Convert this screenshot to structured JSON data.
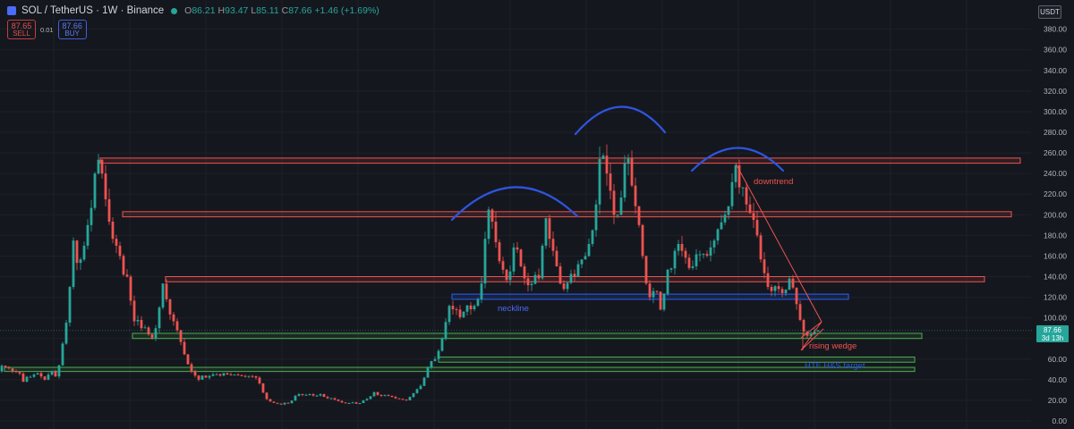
{
  "header": {
    "title": "SOL / TetherUS · 1W · Binance",
    "ohlc": {
      "o": "86.21",
      "h": "93.47",
      "l": "85.11",
      "c": "87.66",
      "change": "+1.46 (+1.69%)"
    },
    "sell_price": "87.65",
    "sell_label": "SELL",
    "spread": "0.01",
    "buy_price": "87.66",
    "buy_label": "BUY"
  },
  "currency": "USDT",
  "colors": {
    "up": "#26a69a",
    "down": "#ef5350",
    "background": "#15171e",
    "resistance": "#ef5350",
    "support": "#4caf50",
    "neckline": "#2962ff",
    "arc": "#2e55e0"
  },
  "chart_data": {
    "type": "candlestick",
    "symbol": "SOL/USDT",
    "interval": "1W",
    "ylim": [
      0,
      380
    ],
    "y_ticks": [
      "380.00",
      "360.00",
      "340.00",
      "320.00",
      "300.00",
      "280.00",
      "260.00",
      "240.00",
      "220.00",
      "200.00",
      "180.00",
      "160.00",
      "140.00",
      "120.00",
      "100.00",
      "80.00",
      "60.00",
      "40.00",
      "20.00",
      "0.00"
    ],
    "last_price": "87.66",
    "countdown": "3d 13h",
    "price_path": [
      [
        0,
        48
      ],
      [
        5,
        55
      ],
      [
        10,
        50
      ],
      [
        14,
        52
      ],
      [
        18,
        45
      ],
      [
        22,
        50
      ],
      [
        28,
        38
      ],
      [
        33,
        44
      ],
      [
        38,
        42
      ],
      [
        42,
        48
      ],
      [
        47,
        44
      ],
      [
        52,
        40
      ],
      [
        56,
        45
      ],
      [
        60,
        48
      ],
      [
        65,
        42
      ],
      [
        69,
        58
      ],
      [
        72,
        75
      ],
      [
        75,
        88
      ],
      [
        78,
        110
      ],
      [
        81,
        140
      ],
      [
        84,
        175
      ],
      [
        87,
        155
      ],
      [
        90,
        150
      ],
      [
        93,
        160
      ],
      [
        96,
        170
      ],
      [
        99,
        185
      ],
      [
        102,
        200
      ],
      [
        105,
        210
      ],
      [
        108,
        240
      ],
      [
        111,
        255
      ],
      [
        114,
        250
      ],
      [
        117,
        235
      ],
      [
        120,
        215
      ],
      [
        123,
        200
      ],
      [
        126,
        180
      ],
      [
        129,
        175
      ],
      [
        132,
        170
      ],
      [
        135,
        165
      ],
      [
        138,
        150
      ],
      [
        141,
        138
      ],
      [
        144,
        140
      ],
      [
        147,
        125
      ],
      [
        150,
        100
      ],
      [
        153,
        95
      ],
      [
        156,
        98
      ],
      [
        160,
        90
      ],
      [
        163,
        92
      ],
      [
        166,
        88
      ],
      [
        169,
        82
      ],
      [
        173,
        80
      ],
      [
        176,
        90
      ],
      [
        179,
        105
      ],
      [
        182,
        120
      ],
      [
        185,
        140
      ],
      [
        188,
        118
      ],
      [
        191,
        105
      ],
      [
        194,
        100
      ],
      [
        197,
        95
      ],
      [
        200,
        88
      ],
      [
        203,
        80
      ],
      [
        206,
        70
      ],
      [
        209,
        62
      ],
      [
        212,
        55
      ],
      [
        216,
        48
      ],
      [
        220,
        44
      ],
      [
        224,
        40
      ],
      [
        228,
        44
      ],
      [
        232,
        42
      ],
      [
        237,
        44
      ],
      [
        242,
        46
      ],
      [
        248,
        44
      ],
      [
        253,
        47
      ],
      [
        258,
        44
      ],
      [
        264,
        45
      ],
      [
        270,
        44
      ],
      [
        276,
        43
      ],
      [
        282,
        44
      ],
      [
        288,
        42
      ],
      [
        293,
        35
      ],
      [
        297,
        25
      ],
      [
        301,
        20
      ],
      [
        306,
        18
      ],
      [
        311,
        17
      ],
      [
        316,
        16
      ],
      [
        321,
        18
      ],
      [
        326,
        17
      ],
      [
        331,
        24
      ],
      [
        336,
        26
      ],
      [
        342,
        25
      ],
      [
        348,
        26
      ],
      [
        354,
        24
      ],
      [
        360,
        26
      ],
      [
        366,
        22
      ],
      [
        372,
        22
      ],
      [
        378,
        20
      ],
      [
        384,
        18
      ],
      [
        390,
        17
      ],
      [
        396,
        18
      ],
      [
        402,
        16
      ],
      [
        408,
        20
      ],
      [
        414,
        22
      ],
      [
        420,
        28
      ],
      [
        426,
        24
      ],
      [
        432,
        25
      ],
      [
        438,
        24
      ],
      [
        444,
        22
      ],
      [
        450,
        21
      ],
      [
        456,
        20
      ],
      [
        462,
        25
      ],
      [
        467,
        30
      ],
      [
        472,
        34
      ],
      [
        476,
        42
      ],
      [
        480,
        52
      ],
      [
        484,
        58
      ],
      [
        488,
        60
      ],
      [
        492,
        68
      ],
      [
        496,
        80
      ],
      [
        500,
        96
      ],
      [
        503,
        110
      ],
      [
        506,
        115
      ],
      [
        509,
        105
      ],
      [
        512,
        108
      ],
      [
        515,
        100
      ],
      [
        518,
        102
      ],
      [
        521,
        108
      ],
      [
        524,
        112
      ],
      [
        527,
        110
      ],
      [
        530,
        105
      ],
      [
        533,
        115
      ],
      [
        536,
        118
      ],
      [
        539,
        125
      ],
      [
        542,
        150
      ],
      [
        545,
        190
      ],
      [
        548,
        205
      ],
      [
        551,
        200
      ],
      [
        554,
        180
      ],
      [
        557,
        170
      ],
      [
        560,
        155
      ],
      [
        563,
        150
      ],
      [
        566,
        140
      ],
      [
        569,
        135
      ],
      [
        572,
        145
      ],
      [
        575,
        165
      ],
      [
        578,
        175
      ],
      [
        581,
        162
      ],
      [
        584,
        150
      ],
      [
        587,
        140
      ],
      [
        590,
        135
      ],
      [
        593,
        130
      ],
      [
        596,
        133
      ],
      [
        599,
        145
      ],
      [
        602,
        135
      ],
      [
        605,
        140
      ],
      [
        608,
        170
      ],
      [
        611,
        200
      ],
      [
        614,
        190
      ],
      [
        617,
        170
      ],
      [
        620,
        165
      ],
      [
        623,
        155
      ],
      [
        626,
        140
      ],
      [
        629,
        130
      ],
      [
        632,
        128
      ],
      [
        635,
        132
      ],
      [
        638,
        138
      ],
      [
        641,
        145
      ],
      [
        644,
        140
      ],
      [
        647,
        148
      ],
      [
        650,
        160
      ],
      [
        653,
        155
      ],
      [
        656,
        160
      ],
      [
        659,
        170
      ],
      [
        662,
        175
      ],
      [
        665,
        190
      ],
      [
        668,
        210
      ],
      [
        671,
        250
      ],
      [
        674,
        262
      ],
      [
        677,
        255
      ],
      [
        680,
        240
      ],
      [
        683,
        230
      ],
      [
        686,
        210
      ],
      [
        689,
        195
      ],
      [
        692,
        200
      ],
      [
        695,
        210
      ],
      [
        698,
        230
      ],
      [
        701,
        260
      ],
      [
        704,
        255
      ],
      [
        707,
        235
      ],
      [
        710,
        215
      ],
      [
        713,
        205
      ],
      [
        716,
        190
      ],
      [
        719,
        170
      ],
      [
        722,
        140
      ],
      [
        725,
        130
      ],
      [
        728,
        120
      ],
      [
        731,
        125
      ],
      [
        734,
        128
      ],
      [
        737,
        124
      ],
      [
        740,
        108
      ],
      [
        743,
        115
      ],
      [
        746,
        140
      ],
      [
        749,
        150
      ],
      [
        752,
        148
      ],
      [
        755,
        160
      ],
      [
        758,
        175
      ],
      [
        761,
        170
      ],
      [
        764,
        165
      ],
      [
        767,
        160
      ],
      [
        770,
        155
      ],
      [
        773,
        145
      ],
      [
        776,
        150
      ],
      [
        779,
        160
      ],
      [
        782,
        165
      ],
      [
        785,
        160
      ],
      [
        788,
        162
      ],
      [
        791,
        158
      ],
      [
        794,
        165
      ],
      [
        797,
        170
      ],
      [
        800,
        175
      ],
      [
        803,
        185
      ],
      [
        806,
        188
      ],
      [
        809,
        195
      ],
      [
        812,
        200
      ],
      [
        815,
        205
      ],
      [
        818,
        215
      ],
      [
        821,
        240
      ],
      [
        824,
        248
      ],
      [
        827,
        230
      ],
      [
        830,
        220
      ],
      [
        833,
        230
      ],
      [
        836,
        210
      ],
      [
        839,
        200
      ],
      [
        842,
        205
      ],
      [
        845,
        190
      ],
      [
        848,
        180
      ],
      [
        851,
        160
      ],
      [
        854,
        150
      ],
      [
        857,
        140
      ],
      [
        860,
        130
      ],
      [
        863,
        125
      ],
      [
        866,
        128
      ],
      [
        869,
        132
      ],
      [
        872,
        128
      ],
      [
        875,
        125
      ],
      [
        878,
        122
      ],
      [
        881,
        130
      ],
      [
        884,
        138
      ],
      [
        887,
        134
      ],
      [
        890,
        120
      ],
      [
        893,
        110
      ],
      [
        896,
        98
      ],
      [
        899,
        88
      ],
      [
        902,
        84
      ],
      [
        905,
        82
      ],
      [
        908,
        84
      ],
      [
        911,
        86
      ],
      [
        914,
        88
      ],
      [
        917,
        87.66
      ]
    ],
    "resistance_zones": [
      {
        "y1": 250,
        "y2": 255
      },
      {
        "y1": 198,
        "y2": 203
      },
      {
        "y1": 135,
        "y2": 140
      }
    ],
    "support_zones": [
      {
        "y1": 80,
        "y2": 85
      },
      {
        "y1": 57,
        "y2": 62
      },
      {
        "y1": 48,
        "y2": 52
      }
    ],
    "neckline_zone": {
      "y1": 118,
      "y2": 123
    },
    "annotations": {
      "neckline": "neckline",
      "downtrend": "downtrend",
      "rising_wedge": "rising wedge",
      "target": "HTF H&S target"
    }
  }
}
